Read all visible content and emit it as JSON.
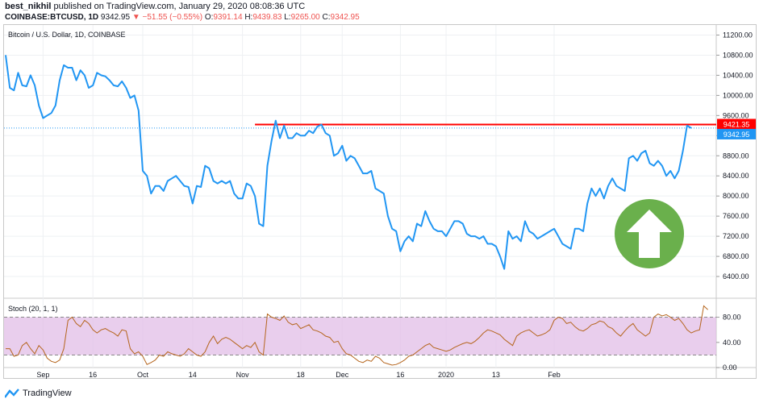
{
  "header": {
    "author": "best_nikhil",
    "published_text": "published on TradingView.com, January 29, 2020 08:08:36 UTC",
    "symbol": "COINBASE:BTCUSD, 1D",
    "last": "9342.95",
    "change": "−51.55 (−0.55%)",
    "o_label": "O:",
    "o_value": "9391.14",
    "h_label": "H:",
    "h_value": "9439.83",
    "l_label": "L:",
    "l_value": "9265.00",
    "c_label": "C:",
    "c_value": "9342.95"
  },
  "main_legend": "Bitcoin / U.S. Dollar, 1D, COINBASE",
  "stoch_legend": "Stoch (20, 1, 1)",
  "brand": {
    "name": "TradingView",
    "icon": "tradingview-logo-icon"
  },
  "price_badges": {
    "resistance": "9421.35",
    "last": "9342.95"
  },
  "colors": {
    "price_line": "#2196f3",
    "resistance": "#ff0000",
    "stoch_line": "#b5651d",
    "stoch_band": "#e1bee7",
    "badge_last": "#2196f3",
    "arrow_circle": "#6ab04c"
  },
  "annotation": {
    "icon": "green-up-arrow-icon"
  },
  "chart_data": [
    {
      "type": "line",
      "title": "Bitcoin / U.S. Dollar, 1D, COINBASE",
      "ylim": [
        6000,
        11400
      ],
      "yticks": [
        "11200.00",
        "10800.00",
        "10400.00",
        "10000.00",
        "9600.00",
        "9200.00",
        "8800.00",
        "8400.00",
        "8000.00",
        "7600.00",
        "7200.00",
        "6800.00",
        "6400.00"
      ],
      "ytick_values": [
        11200,
        10800,
        10400,
        10000,
        9600,
        9200,
        8800,
        8400,
        8000,
        7600,
        7200,
        6800,
        6400
      ],
      "xticks": [
        "Sep",
        "16",
        "Oct",
        "14",
        "Nov",
        "18",
        "Dec",
        "16",
        "2020",
        "13",
        "Feb"
      ],
      "xtick_index": [
        9,
        21,
        33,
        45,
        57,
        71,
        81,
        95,
        106,
        118,
        132
      ],
      "resistance_level": 9421.35,
      "resistance_start_index": 60,
      "series": [
        {
          "values": [
            10800,
            10150,
            10100,
            10450,
            10200,
            10180,
            10400,
            10200,
            9800,
            9550,
            9600,
            9650,
            9800,
            10300,
            10600,
            10550,
            10550,
            10300,
            10500,
            10400,
            10150,
            10200,
            10450,
            10400,
            10380,
            10300,
            10200,
            10180,
            10280,
            10150,
            9950,
            10000,
            9700,
            8500,
            8400,
            8050,
            8200,
            8200,
            8100,
            8300,
            8350,
            8400,
            8300,
            8200,
            8180,
            7850,
            8200,
            8180,
            8600,
            8550,
            8300,
            8250,
            8300,
            8250,
            8300,
            8050,
            7950,
            7950,
            8250,
            8200,
            8000,
            7450,
            7400,
            8600,
            9100,
            9500,
            9150,
            9400,
            9150,
            9150,
            9250,
            9200,
            9200,
            9300,
            9250,
            9380,
            9420,
            9250,
            9200,
            8800,
            8850,
            9000,
            8700,
            8800,
            8750,
            8600,
            8450,
            8450,
            8500,
            8150,
            8100,
            8050,
            7600,
            7350,
            7300,
            6900,
            7100,
            7200,
            7100,
            7450,
            7400,
            7700,
            7500,
            7350,
            7300,
            7300,
            7200,
            7350,
            7500,
            7500,
            7450,
            7250,
            7200,
            7200,
            7150,
            7200,
            7050,
            7050,
            7000,
            6800,
            6550,
            7300,
            7150,
            7200,
            7100,
            7500,
            7300,
            7250,
            7150,
            7200,
            7250,
            7300,
            7350,
            7200,
            7050,
            7000,
            6950,
            7350,
            7350,
            7300,
            7850,
            8150,
            8000,
            8150,
            7950,
            8200,
            8350,
            8200,
            8150,
            8100,
            8750,
            8800,
            8700,
            8850,
            8900,
            8650,
            8600,
            8700,
            8600,
            8400,
            8500,
            8350,
            8500,
            8900,
            9400,
            9350
          ]
        }
      ]
    },
    {
      "type": "line",
      "title": "Stoch (20, 1, 1)",
      "ylim": [
        -5,
        105
      ],
      "yticks": [
        "80.00",
        "40.00",
        "0.00"
      ],
      "ytick_values": [
        80,
        40,
        0
      ],
      "band": [
        20,
        80
      ],
      "series": [
        {
          "values": [
            30,
            30,
            18,
            20,
            35,
            40,
            30,
            22,
            35,
            28,
            15,
            10,
            8,
            12,
            30,
            75,
            80,
            70,
            65,
            75,
            70,
            60,
            55,
            60,
            62,
            58,
            55,
            50,
            60,
            58,
            30,
            22,
            25,
            18,
            5,
            8,
            12,
            20,
            18,
            25,
            22,
            20,
            18,
            22,
            30,
            25,
            20,
            18,
            25,
            40,
            50,
            38,
            45,
            48,
            45,
            40,
            35,
            30,
            35,
            32,
            40,
            25,
            20,
            85,
            80,
            78,
            75,
            82,
            72,
            68,
            70,
            62,
            65,
            68,
            60,
            58,
            55,
            50,
            48,
            40,
            42,
            30,
            22,
            20,
            15,
            10,
            8,
            12,
            10,
            18,
            15,
            8,
            6,
            4,
            5,
            8,
            12,
            18,
            20,
            25,
            30,
            35,
            38,
            32,
            30,
            28,
            26,
            28,
            32,
            35,
            38,
            40,
            38,
            42,
            48,
            55,
            60,
            58,
            55,
            52,
            45,
            40,
            35,
            50,
            55,
            58,
            60,
            55,
            50,
            52,
            55,
            60,
            75,
            80,
            78,
            70,
            72,
            65,
            60,
            58,
            62,
            68,
            70,
            74,
            72,
            65,
            62,
            55,
            50,
            58,
            65,
            70,
            60,
            55,
            50,
            55,
            80,
            85,
            82,
            84,
            80,
            75,
            78,
            70,
            60,
            55,
            58,
            60,
            98,
            92
          ]
        }
      ]
    }
  ]
}
